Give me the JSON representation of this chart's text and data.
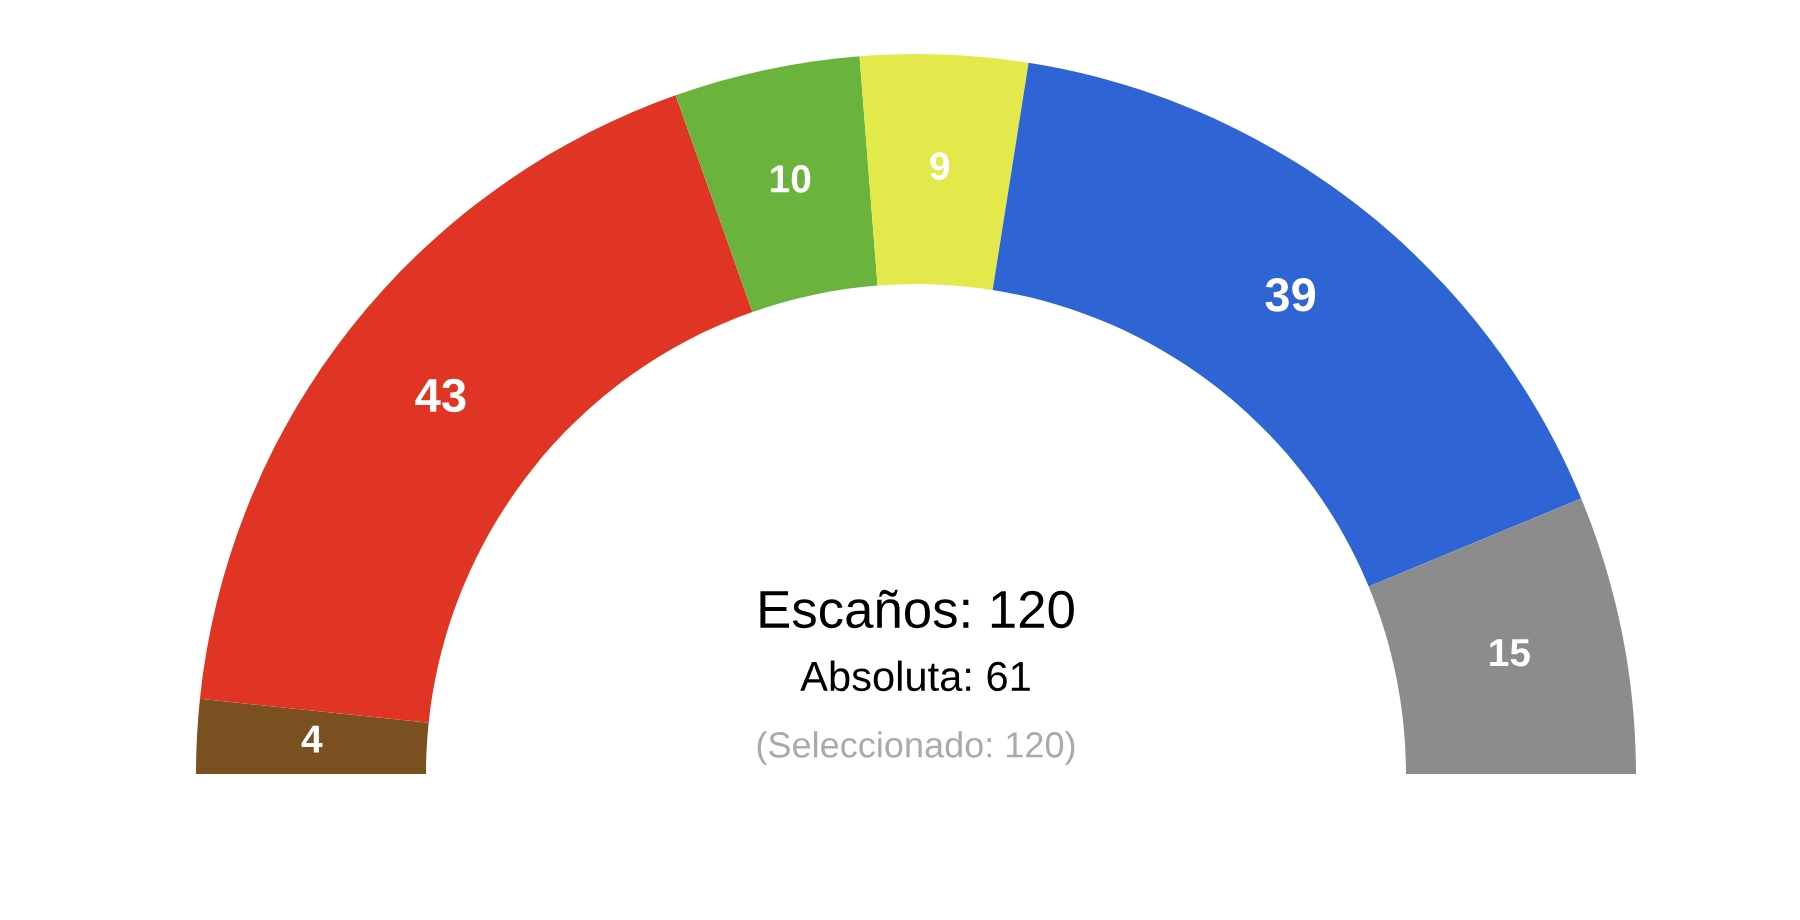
{
  "chart_data": {
    "type": "donut",
    "categories": [
      null,
      null,
      null,
      null,
      null,
      null
    ],
    "values": [
      4,
      43,
      10,
      9,
      39,
      15
    ],
    "colors": [
      "#7a5020",
      "#e03524",
      "#6ab43e",
      "#e3e94b",
      "#2f64d4",
      "#8c8c8c"
    ],
    "data_labels": true,
    "annotations": [
      "Escaños: 120",
      "Absoluta: 61",
      "(Seleccionado: 120)"
    ]
  }
}
